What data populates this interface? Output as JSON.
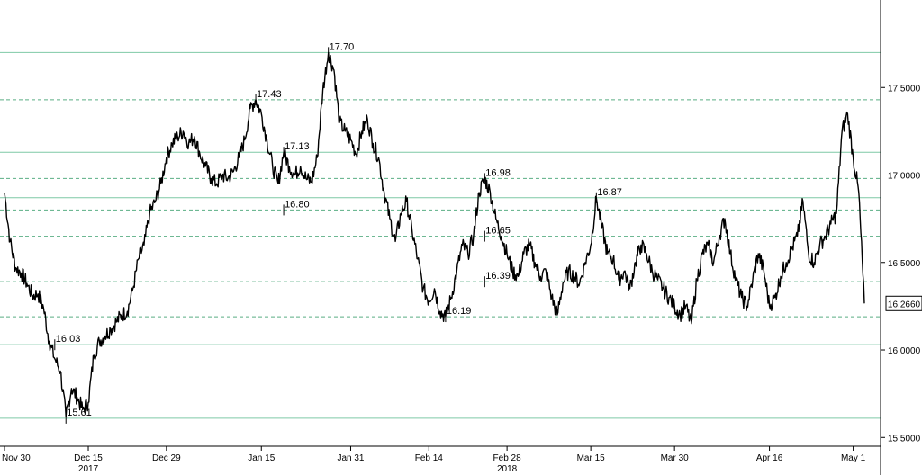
{
  "chart_data": {
    "type": "line",
    "title": "",
    "xlabel": "",
    "ylabel": "",
    "ylim": [
      15.45,
      18.0
    ],
    "y_ticks": [
      15.5,
      16.0,
      16.5,
      17.0,
      17.5
    ],
    "y_tick_labels": [
      "15.5000",
      "16.0000",
      "16.5000",
      "17.0000",
      "17.5000"
    ],
    "x_ticks": [
      {
        "date": "2017-11-30",
        "label": "Nov 30"
      },
      {
        "date": "2017-12-15",
        "label": "Dec 15"
      },
      {
        "date": "2017-12-29",
        "label": "Dec 29"
      },
      {
        "date": "2018-01-15",
        "label": "Jan 15"
      },
      {
        "date": "2018-01-31",
        "label": "Jan 31"
      },
      {
        "date": "2018-02-14",
        "label": "Feb 14"
      },
      {
        "date": "2018-02-28",
        "label": "Feb 28"
      },
      {
        "date": "2018-03-15",
        "label": "Mar 15"
      },
      {
        "date": "2018-03-30",
        "label": "Mar 30"
      },
      {
        "date": "2018-04-16",
        "label": "Apr 16"
      },
      {
        "date": "2018-05-01",
        "label": "May 1"
      }
    ],
    "year_labels": [
      {
        "date": "2017-12-15",
        "label": "2017"
      },
      {
        "date": "2018-02-28",
        "label": "2018"
      }
    ],
    "xlim": [
      "2017-11-30",
      "2018-05-03"
    ],
    "last_price": {
      "value": 16.266,
      "label": "16.2660"
    },
    "grid": false,
    "series": [
      {
        "color": "#000000",
        "points": [
          [
            "2017-11-30",
            16.9
          ],
          [
            "2017-12-01",
            16.62
          ],
          [
            "2017-12-02",
            16.47
          ],
          [
            "2017-12-03",
            16.44
          ],
          [
            "2017-12-04",
            16.38
          ],
          [
            "2017-12-05",
            16.31
          ],
          [
            "2017-12-06",
            16.32
          ],
          [
            "2017-12-07",
            16.24
          ],
          [
            "2017-12-08",
            16.05
          ],
          [
            "2017-12-09",
            15.95
          ],
          [
            "2017-12-10",
            15.88
          ],
          [
            "2017-12-11",
            15.62
          ],
          [
            "2017-12-12",
            15.78
          ],
          [
            "2017-12-13",
            15.73
          ],
          [
            "2017-12-14",
            15.66
          ],
          [
            "2017-12-15",
            15.7
          ],
          [
            "2017-12-16",
            15.97
          ],
          [
            "2017-12-17",
            16.05
          ],
          [
            "2017-12-18",
            16.08
          ],
          [
            "2017-12-19",
            16.12
          ],
          [
            "2017-12-20",
            16.16
          ],
          [
            "2017-12-21",
            16.2
          ],
          [
            "2017-12-22",
            16.22
          ],
          [
            "2017-12-23",
            16.35
          ],
          [
            "2017-12-24",
            16.52
          ],
          [
            "2017-12-25",
            16.6
          ],
          [
            "2017-12-26",
            16.78
          ],
          [
            "2017-12-27",
            16.85
          ],
          [
            "2017-12-28",
            16.95
          ],
          [
            "2017-12-29",
            17.1
          ],
          [
            "2017-12-30",
            17.18
          ],
          [
            "2017-12-31",
            17.22
          ],
          [
            "2018-01-01",
            17.25
          ],
          [
            "2018-01-02",
            17.18
          ],
          [
            "2018-01-03",
            17.22
          ],
          [
            "2018-01-04",
            17.12
          ],
          [
            "2018-01-05",
            17.05
          ],
          [
            "2018-01-06",
            16.98
          ],
          [
            "2018-01-07",
            16.95
          ],
          [
            "2018-01-08",
            17.0
          ],
          [
            "2018-01-09",
            16.98
          ],
          [
            "2018-01-10",
            17.02
          ],
          [
            "2018-01-11",
            17.1
          ],
          [
            "2018-01-12",
            17.2
          ],
          [
            "2018-01-13",
            17.38
          ],
          [
            "2018-01-14",
            17.43
          ],
          [
            "2018-01-15",
            17.35
          ],
          [
            "2018-01-16",
            17.2
          ],
          [
            "2018-01-17",
            17.05
          ],
          [
            "2018-01-18",
            16.95
          ],
          [
            "2018-01-19",
            17.13
          ],
          [
            "2018-01-20",
            17.05
          ],
          [
            "2018-01-21",
            17.0
          ],
          [
            "2018-01-22",
            17.05
          ],
          [
            "2018-01-23",
            16.98
          ],
          [
            "2018-01-24",
            16.96
          ],
          [
            "2018-01-25",
            17.1
          ],
          [
            "2018-01-26",
            17.48
          ],
          [
            "2018-01-27",
            17.7
          ],
          [
            "2018-01-28",
            17.6
          ],
          [
            "2018-01-29",
            17.3
          ],
          [
            "2018-01-30",
            17.25
          ],
          [
            "2018-01-31",
            17.2
          ],
          [
            "2018-02-01",
            17.12
          ],
          [
            "2018-02-02",
            17.25
          ],
          [
            "2018-02-03",
            17.32
          ],
          [
            "2018-02-04",
            17.18
          ],
          [
            "2018-02-05",
            17.1
          ],
          [
            "2018-02-06",
            16.9
          ],
          [
            "2018-02-07",
            16.75
          ],
          [
            "2018-02-08",
            16.62
          ],
          [
            "2018-02-09",
            16.78
          ],
          [
            "2018-02-10",
            16.85
          ],
          [
            "2018-02-11",
            16.68
          ],
          [
            "2018-02-12",
            16.52
          ],
          [
            "2018-02-13",
            16.35
          ],
          [
            "2018-02-14",
            16.28
          ],
          [
            "2018-02-15",
            16.35
          ],
          [
            "2018-02-16",
            16.22
          ],
          [
            "2018-02-17",
            16.19
          ],
          [
            "2018-02-18",
            16.3
          ],
          [
            "2018-02-19",
            16.45
          ],
          [
            "2018-02-20",
            16.6
          ],
          [
            "2018-02-21",
            16.55
          ],
          [
            "2018-02-22",
            16.65
          ],
          [
            "2018-02-23",
            16.9
          ],
          [
            "2018-02-24",
            16.98
          ],
          [
            "2018-02-25",
            16.9
          ],
          [
            "2018-02-26",
            16.75
          ],
          [
            "2018-02-27",
            16.65
          ],
          [
            "2018-02-28",
            16.55
          ],
          [
            "2018-03-01",
            16.45
          ],
          [
            "2018-03-02",
            16.42
          ],
          [
            "2018-03-03",
            16.55
          ],
          [
            "2018-03-04",
            16.6
          ],
          [
            "2018-03-05",
            16.5
          ],
          [
            "2018-03-06",
            16.42
          ],
          [
            "2018-03-07",
            16.45
          ],
          [
            "2018-03-08",
            16.3
          ],
          [
            "2018-03-09",
            16.2
          ],
          [
            "2018-03-10",
            16.38
          ],
          [
            "2018-03-11",
            16.45
          ],
          [
            "2018-03-12",
            16.42
          ],
          [
            "2018-03-13",
            16.38
          ],
          [
            "2018-03-14",
            16.5
          ],
          [
            "2018-03-15",
            16.6
          ],
          [
            "2018-03-16",
            16.87
          ],
          [
            "2018-03-17",
            16.7
          ],
          [
            "2018-03-18",
            16.55
          ],
          [
            "2018-03-19",
            16.52
          ],
          [
            "2018-03-20",
            16.4
          ],
          [
            "2018-03-21",
            16.45
          ],
          [
            "2018-03-22",
            16.35
          ],
          [
            "2018-03-23",
            16.5
          ],
          [
            "2018-03-24",
            16.6
          ],
          [
            "2018-03-25",
            16.55
          ],
          [
            "2018-03-26",
            16.45
          ],
          [
            "2018-03-27",
            16.4
          ],
          [
            "2018-03-28",
            16.35
          ],
          [
            "2018-03-29",
            16.3
          ],
          [
            "2018-03-30",
            16.25
          ],
          [
            "2018-03-31",
            16.2
          ],
          [
            "2018-04-01",
            16.25
          ],
          [
            "2018-04-02",
            16.15
          ],
          [
            "2018-04-03",
            16.4
          ],
          [
            "2018-04-04",
            16.55
          ],
          [
            "2018-04-05",
            16.6
          ],
          [
            "2018-04-06",
            16.5
          ],
          [
            "2018-04-07",
            16.65
          ],
          [
            "2018-04-08",
            16.75
          ],
          [
            "2018-04-09",
            16.55
          ],
          [
            "2018-04-10",
            16.4
          ],
          [
            "2018-04-11",
            16.3
          ],
          [
            "2018-04-12",
            16.25
          ],
          [
            "2018-04-13",
            16.4
          ],
          [
            "2018-04-14",
            16.55
          ],
          [
            "2018-04-15",
            16.45
          ],
          [
            "2018-04-16",
            16.25
          ],
          [
            "2018-04-17",
            16.3
          ],
          [
            "2018-04-18",
            16.42
          ],
          [
            "2018-04-19",
            16.5
          ],
          [
            "2018-04-20",
            16.58
          ],
          [
            "2018-04-21",
            16.65
          ],
          [
            "2018-04-22",
            16.85
          ],
          [
            "2018-04-23",
            16.55
          ],
          [
            "2018-04-24",
            16.5
          ],
          [
            "2018-04-25",
            16.6
          ],
          [
            "2018-04-26",
            16.65
          ],
          [
            "2018-04-27",
            16.72
          ],
          [
            "2018-04-28",
            16.78
          ],
          [
            "2018-04-29",
            17.25
          ],
          [
            "2018-04-30",
            17.35
          ],
          [
            "2018-05-01",
            17.1
          ],
          [
            "2018-05-02",
            16.9
          ],
          [
            "2018-05-03",
            16.266
          ]
        ]
      }
    ],
    "reference_lines": [
      {
        "value": 17.7,
        "label": "17.70",
        "style": "solid",
        "color": "#7fc9a6"
      },
      {
        "value": 17.43,
        "label": "17.43",
        "style": "dashed",
        "color": "#5aae84"
      },
      {
        "value": 17.13,
        "label": "17.13",
        "style": "solid",
        "color": "#7fc9a6"
      },
      {
        "value": 16.98,
        "label": "16.98",
        "style": "dashed",
        "color": "#5aae84"
      },
      {
        "value": 16.87,
        "label": "16.87",
        "style": "solid",
        "color": "#7fc9a6"
      },
      {
        "value": 16.8,
        "label": "16.80",
        "style": "dashed",
        "color": "#5aae84"
      },
      {
        "value": 16.65,
        "label": "16.65",
        "style": "dashed",
        "color": "#5aae84"
      },
      {
        "value": 16.39,
        "label": "16.39",
        "style": "dashed",
        "color": "#5aae84"
      },
      {
        "value": 16.19,
        "label": "16.19",
        "style": "dashed",
        "color": "#5aae84"
      },
      {
        "value": 16.03,
        "label": "16.03",
        "style": "solid",
        "color": "#7fc9a6"
      },
      {
        "value": 15.61,
        "label": "15.61",
        "style": "solid",
        "color": "#7fc9a6"
      }
    ],
    "annotations": [
      {
        "label": "17.70",
        "date": "2018-01-27",
        "value": 17.7
      },
      {
        "label": "17.43",
        "date": "2018-01-14",
        "value": 17.43
      },
      {
        "label": "17.13",
        "date": "2018-01-19",
        "value": 17.13
      },
      {
        "label": "16.80",
        "date": "2018-01-19",
        "value": 16.8
      },
      {
        "label": "16.98",
        "date": "2018-02-24",
        "value": 16.98
      },
      {
        "label": "16.65",
        "date": "2018-02-24",
        "value": 16.65
      },
      {
        "label": "16.39",
        "date": "2018-02-24",
        "value": 16.39
      },
      {
        "label": "16.19",
        "date": "2018-02-17",
        "value": 16.19
      },
      {
        "label": "16.87",
        "date": "2018-03-16",
        "value": 16.87
      },
      {
        "label": "16.03",
        "date": "2017-12-09",
        "value": 16.03
      },
      {
        "label": "15.61",
        "date": "2017-12-11",
        "value": 15.61
      }
    ],
    "colors": {
      "line": "#000000",
      "axis": "#000000",
      "ref_solid": "#7fc9a6",
      "ref_dashed": "#5aae84",
      "price_box_border": "#000000",
      "background": "#ffffff"
    }
  }
}
